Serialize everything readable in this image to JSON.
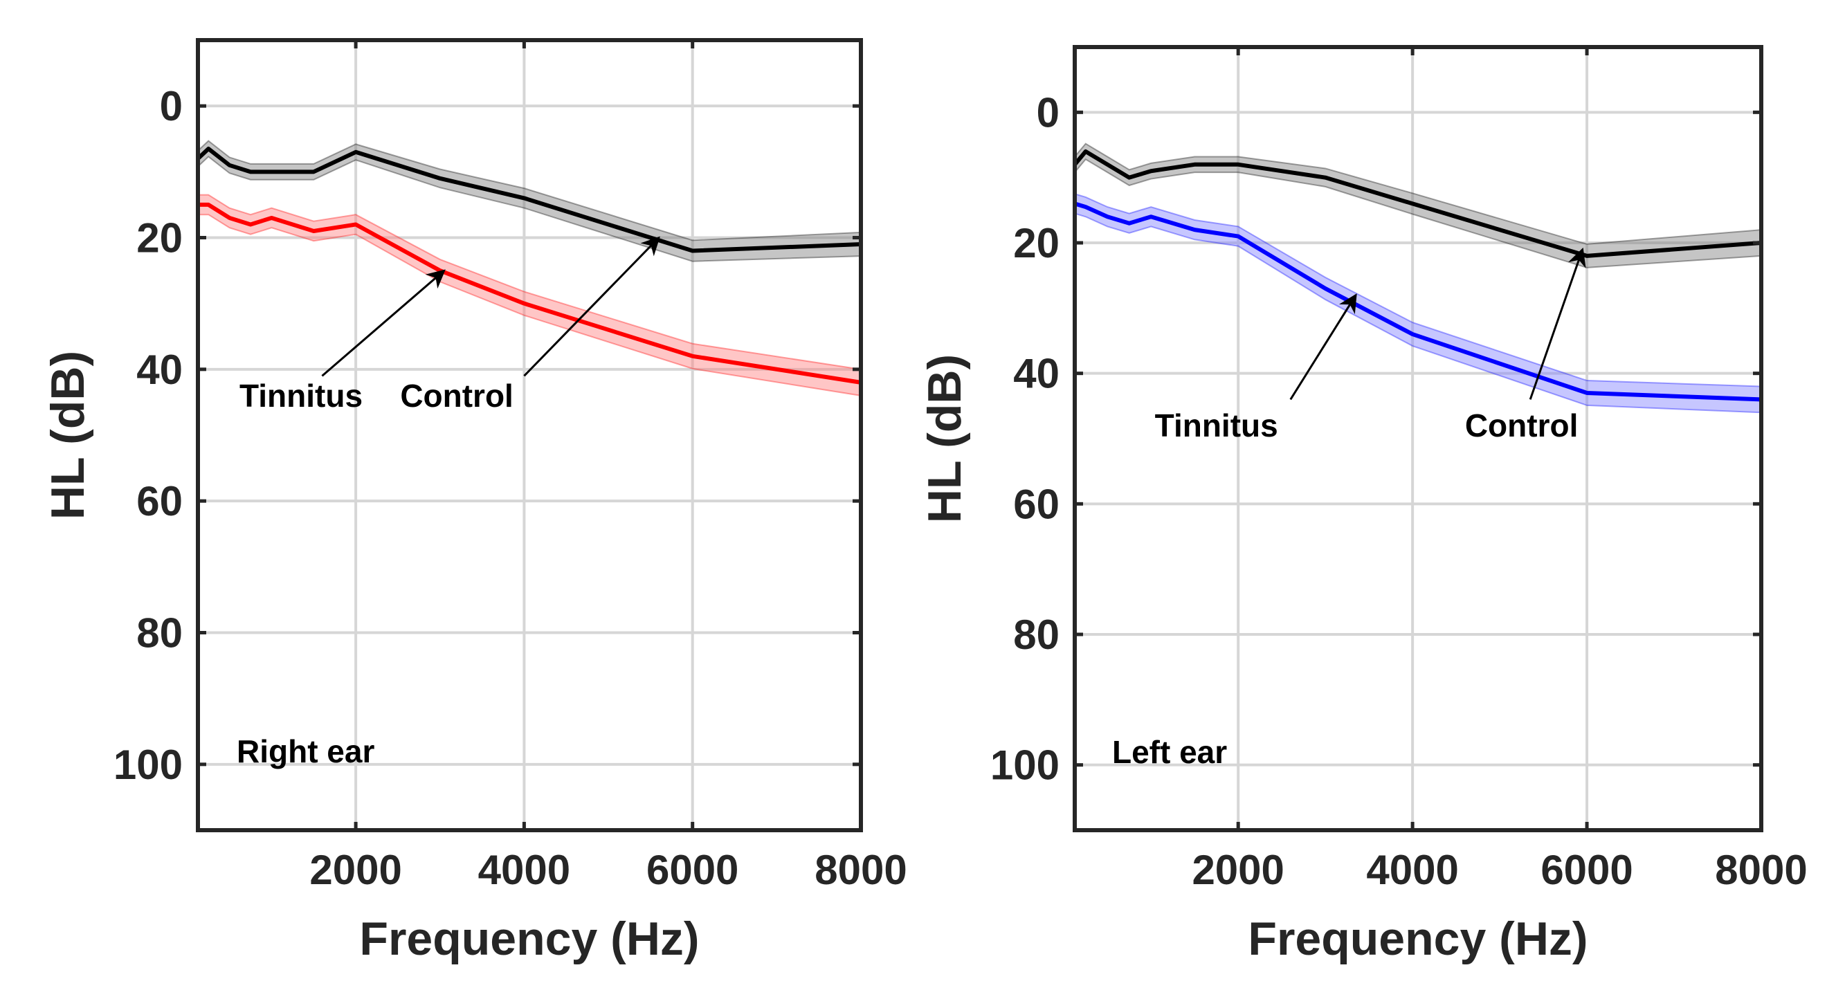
{
  "chart_data": [
    {
      "type": "line",
      "panel": "right",
      "ear_label": "Right ear",
      "xlabel": "Frequency (Hz)",
      "ylabel": "HL (dB)",
      "xlim": [
        125,
        8000
      ],
      "ylim": [
        -10,
        110
      ],
      "y_reversed": true,
      "grid": true,
      "xticks": [
        2000,
        4000,
        6000,
        8000
      ],
      "xtick_labels": [
        "2000",
        "4000",
        "6000",
        "8000"
      ],
      "yticks": [
        0,
        20,
        40,
        60,
        80,
        100
      ],
      "ytick_labels": [
        "0",
        "20",
        "40",
        "60",
        "80",
        "100"
      ],
      "x": [
        125,
        250,
        500,
        750,
        1000,
        1500,
        2000,
        3000,
        4000,
        6000,
        8000
      ],
      "series": [
        {
          "name": "Control",
          "color": "#000000",
          "band_color": "#7f7f7f",
          "values": [
            8,
            6.5,
            9,
            10,
            10,
            10,
            7,
            11,
            14,
            22,
            21
          ],
          "err": [
            1.2,
            1.2,
            1.2,
            1.2,
            1.2,
            1.2,
            1.2,
            1.4,
            1.5,
            1.6,
            1.8
          ]
        },
        {
          "name": "Tinnitus",
          "color": "#ff0000",
          "band_color": "#ff8080",
          "values": [
            15,
            15,
            17,
            18,
            17,
            19,
            18,
            25,
            30,
            38,
            42
          ],
          "err": [
            1.5,
            1.5,
            1.5,
            1.5,
            1.5,
            1.5,
            1.5,
            1.7,
            1.8,
            1.9,
            2.0
          ]
        }
      ],
      "annotations": [
        {
          "text": "Tinnitus",
          "x": 1350,
          "y": 44,
          "anchor": "middle",
          "arrow_from": [
            1600,
            41
          ],
          "arrow_to": [
            3050,
            25
          ]
        },
        {
          "text": "Control",
          "x": 3200,
          "y": 44,
          "anchor": "middle",
          "arrow_from": [
            4000,
            41
          ],
          "arrow_to": [
            5600,
            20
          ]
        }
      ]
    },
    {
      "type": "line",
      "panel": "left",
      "ear_label": "Left ear",
      "xlabel": "Frequency (Hz)",
      "ylabel": "HL (dB)",
      "xlim": [
        125,
        8000
      ],
      "ylim": [
        -10,
        110
      ],
      "y_reversed": true,
      "grid": true,
      "xticks": [
        2000,
        4000,
        6000,
        8000
      ],
      "xtick_labels": [
        "2000",
        "4000",
        "6000",
        "8000"
      ],
      "yticks": [
        0,
        20,
        40,
        60,
        80,
        100
      ],
      "ytick_labels": [
        "0",
        "20",
        "40",
        "60",
        "80",
        "100"
      ],
      "x": [
        125,
        250,
        500,
        750,
        1000,
        1500,
        2000,
        3000,
        4000,
        6000,
        8000
      ],
      "series": [
        {
          "name": "Control",
          "color": "#000000",
          "band_color": "#7f7f7f",
          "values": [
            8,
            6,
            8,
            10,
            9,
            8,
            8,
            10,
            14,
            22,
            20
          ],
          "err": [
            1.2,
            1.2,
            1.2,
            1.2,
            1.2,
            1.2,
            1.2,
            1.4,
            1.6,
            1.8,
            2.0
          ]
        },
        {
          "name": "Tinnitus",
          "color": "#0000ff",
          "band_color": "#8080ff",
          "values": [
            14,
            14.5,
            16,
            17,
            16,
            18,
            19,
            27,
            34,
            43,
            44
          ],
          "err": [
            1.5,
            1.5,
            1.5,
            1.5,
            1.5,
            1.5,
            1.5,
            1.7,
            1.8,
            1.9,
            2.0
          ]
        }
      ],
      "annotations": [
        {
          "text": "Tinnitus",
          "x": 1750,
          "y": 48,
          "anchor": "middle",
          "arrow_from": [
            2600,
            44
          ],
          "arrow_to": [
            3350,
            28
          ]
        },
        {
          "text": "Control",
          "x": 5250,
          "y": 48,
          "anchor": "middle",
          "arrow_from": [
            5350,
            44
          ],
          "arrow_to": [
            5950,
            21
          ]
        }
      ]
    }
  ]
}
